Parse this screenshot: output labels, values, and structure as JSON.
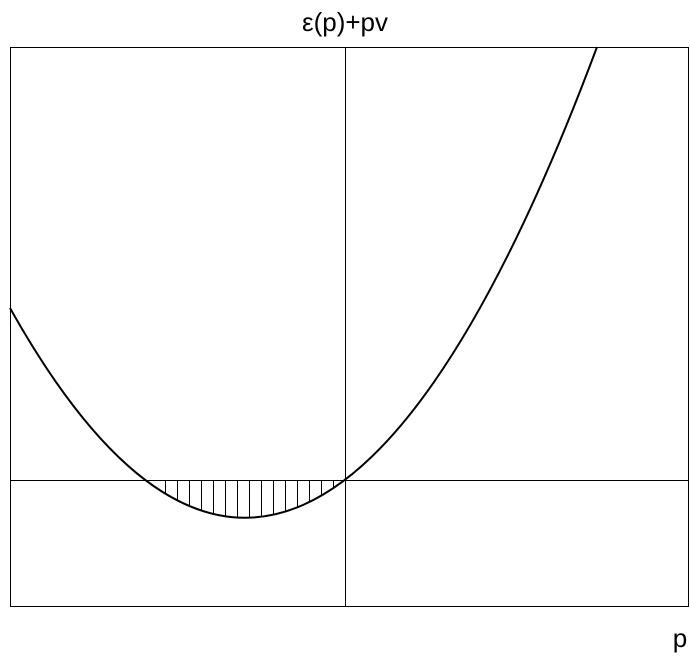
{
  "title": "ε(p)+pv",
  "x_label": "p"
}
